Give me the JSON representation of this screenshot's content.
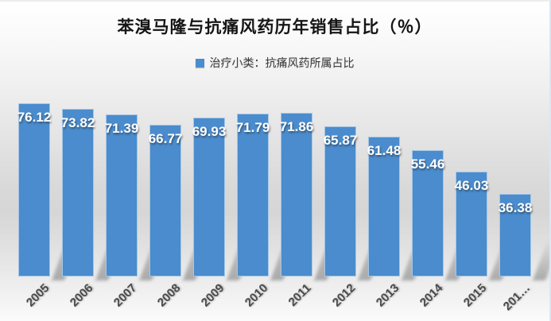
{
  "header": {
    "title": "苯溴马隆与抗痛风药历年销售占比（％）"
  },
  "legend": {
    "marker_color": "#4a8ccd",
    "label": "治疗小类：抗痛风药所属占比"
  },
  "chart_data": {
    "type": "bar",
    "title": "苯溴马隆与抗痛风药历年销售占比（％）",
    "series_name": "治疗小类：抗痛风药所属占比",
    "categories": [
      "2005",
      "2006",
      "2007",
      "2008",
      "2009",
      "2010",
      "2011",
      "2012",
      "2013",
      "2014",
      "2015",
      "201…"
    ],
    "values": [
      76.12,
      73.82,
      71.39,
      66.77,
      69.93,
      71.79,
      71.86,
      65.87,
      61.48,
      55.46,
      46.03,
      36.38
    ],
    "value_label_format": "2-decimals",
    "value_label_position": "inside-end",
    "value_label_color": "#ffffff",
    "bar_color": "#4a8ccd",
    "xlabel": "",
    "ylabel": "",
    "ylim": [
      0,
      80
    ],
    "grid": false,
    "y_axis_visible": false,
    "x_tick_rotation_deg": -45,
    "legend_position": "top"
  }
}
